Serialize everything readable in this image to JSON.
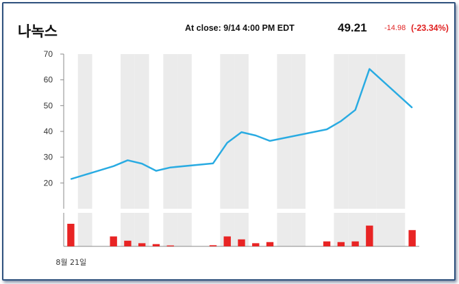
{
  "header": {
    "stock_name": "나녹스",
    "close_label": "At close: 9/14  4:00 PM EDT",
    "price": "49.21",
    "change": "-14.98",
    "change_pct": "(-23.34%)"
  },
  "colors": {
    "line": "#29abe2",
    "volume": "#e82424",
    "band": "#ebebeb",
    "frame": "#2c4f7c"
  },
  "chart_data": {
    "type": "line",
    "title": "",
    "xlabel": "",
    "ylabel": "",
    "ylim": [
      10,
      70
    ],
    "yticks": [
      20,
      30,
      40,
      50,
      60,
      70
    ],
    "x_tick_labels": [
      {
        "index": 0,
        "label": "8월 21일"
      }
    ],
    "grid": false,
    "series": [
      {
        "values": [
          {
            "i": 0,
            "v": 21.5
          },
          {
            "i": 3,
            "v": 26.5
          },
          {
            "i": 4,
            "v": 28.8
          },
          {
            "i": 5,
            "v": 27.5
          },
          {
            "i": 6,
            "v": 24.7
          },
          {
            "i": 7,
            "v": 26.0
          },
          {
            "i": 10,
            "v": 27.6
          },
          {
            "i": 11,
            "v": 35.6
          },
          {
            "i": 12,
            "v": 39.7
          },
          {
            "i": 13,
            "v": 38.4
          },
          {
            "i": 14,
            "v": 36.3
          },
          {
            "i": 18,
            "v": 40.8
          },
          {
            "i": 19,
            "v": 44.0
          },
          {
            "i": 20,
            "v": 48.3
          },
          {
            "i": 21,
            "v": 64.2
          },
          {
            "i": 24,
            "v": 49.2
          }
        ]
      }
    ],
    "volume": [
      {
        "i": 0,
        "v": 1.0
      },
      {
        "i": 3,
        "v": 0.44
      },
      {
        "i": 4,
        "v": 0.25
      },
      {
        "i": 5,
        "v": 0.14
      },
      {
        "i": 6,
        "v": 0.1
      },
      {
        "i": 7,
        "v": 0.04
      },
      {
        "i": 10,
        "v": 0.05
      },
      {
        "i": 11,
        "v": 0.44
      },
      {
        "i": 12,
        "v": 0.31
      },
      {
        "i": 13,
        "v": 0.14
      },
      {
        "i": 14,
        "v": 0.19
      },
      {
        "i": 18,
        "v": 0.22
      },
      {
        "i": 19,
        "v": 0.19
      },
      {
        "i": 20,
        "v": 0.22
      },
      {
        "i": 21,
        "v": 0.92
      },
      {
        "i": 24,
        "v": 0.72
      }
    ],
    "shaded_days": [
      1,
      4,
      5,
      7,
      8,
      11,
      12,
      15,
      16,
      19,
      20,
      21,
      22,
      23
    ]
  }
}
